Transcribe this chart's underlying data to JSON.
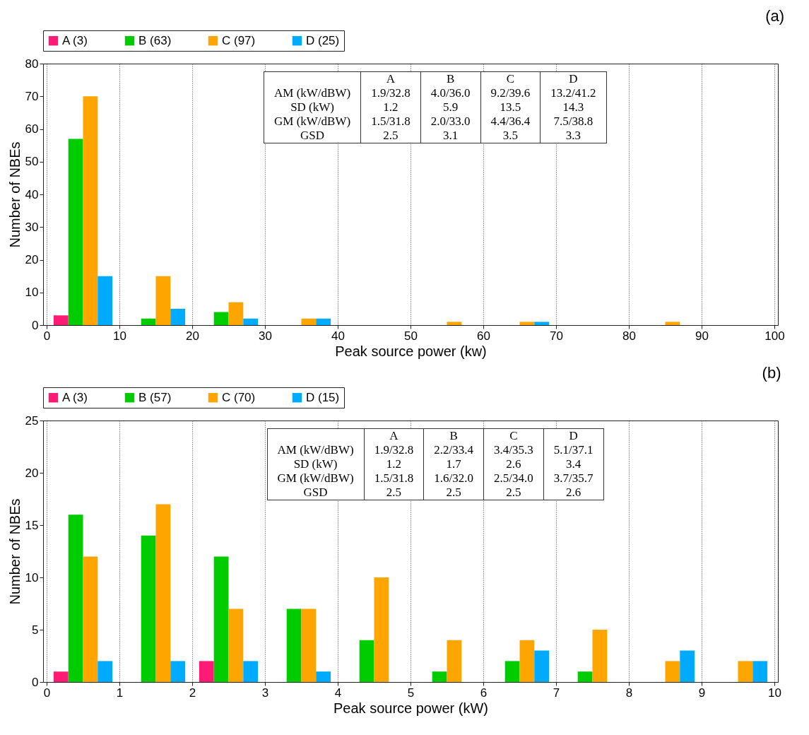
{
  "chart_data": [
    {
      "type": "bar",
      "title": "(a)",
      "xlabel": "Peak source power (kw)",
      "ylabel": "Number of NBEs",
      "x": [
        5,
        15,
        25,
        35,
        45,
        55,
        65,
        75,
        85,
        95
      ],
      "series": [
        {
          "name": "A (3)",
          "color": "#ff1a75",
          "values": [
            3,
            0,
            0,
            0,
            0,
            0,
            0,
            0,
            0,
            0
          ]
        },
        {
          "name": "B (63)",
          "color": "#00cc00",
          "values": [
            57,
            2,
            4,
            0,
            0,
            0,
            0,
            0,
            0,
            0
          ]
        },
        {
          "name": "C (97)",
          "color": "#ffa500",
          "values": [
            70,
            15,
            7,
            2,
            0,
            1,
            1,
            0,
            1,
            0
          ]
        },
        {
          "name": "D (25)",
          "color": "#00aaff",
          "values": [
            15,
            5,
            2,
            2,
            0,
            0,
            1,
            0,
            0,
            0
          ]
        }
      ],
      "xlim": [
        0,
        100
      ],
      "xticks": [
        0,
        10,
        20,
        30,
        40,
        50,
        60,
        70,
        80,
        90,
        100
      ],
      "ylim": [
        0,
        80
      ],
      "yticks": [
        0,
        10,
        20,
        30,
        40,
        50,
        60,
        70,
        80
      ],
      "grid": "x",
      "legend": "top",
      "annotations": [
        "A",
        "B",
        "C",
        "D",
        "AM (kW/dBW)",
        "1.9/32.8",
        "4.0/36.0",
        "9.2/39.6",
        "13.2/41.2",
        "SD (kW)",
        "1.2",
        "5.9",
        "13.5",
        "14.3",
        "GM (kW/dBW)",
        "1.5/31.8",
        "2.0/33.0",
        "4.4/36.4",
        "7.5/38.8",
        "GSD",
        "2.5",
        "3.1",
        "3.5",
        "3.3"
      ]
    },
    {
      "type": "bar",
      "title": "(b)",
      "xlabel": "Peak source power (kW)",
      "ylabel": "Number of NBEs",
      "x": [
        0.5,
        1.5,
        2.5,
        3.5,
        4.5,
        5.5,
        6.5,
        7.5,
        8.5,
        9.5
      ],
      "series": [
        {
          "name": "A (3)",
          "color": "#ff1a75",
          "values": [
            1,
            0,
            2,
            0,
            0,
            0,
            0,
            0,
            0,
            0
          ]
        },
        {
          "name": "B (57)",
          "color": "#00cc00",
          "values": [
            16,
            14,
            12,
            7,
            4,
            1,
            2,
            1,
            0,
            0
          ]
        },
        {
          "name": "C (70)",
          "color": "#ffa500",
          "values": [
            12,
            17,
            7,
            7,
            10,
            4,
            4,
            5,
            2,
            2
          ]
        },
        {
          "name": "D (15)",
          "color": "#00aaff",
          "values": [
            2,
            2,
            2,
            1,
            0,
            0,
            3,
            0,
            3,
            2
          ]
        }
      ],
      "xlim": [
        0,
        10
      ],
      "xticks": [
        0,
        1,
        2,
        3,
        4,
        5,
        6,
        7,
        8,
        9,
        10
      ],
      "ylim": [
        0,
        25
      ],
      "yticks": [
        0,
        5,
        10,
        15,
        20,
        25
      ],
      "grid": "x",
      "legend": "top",
      "annotations": [
        "A",
        "B",
        "C",
        "D",
        "AM (kW/dBW)",
        "1.9/32.8",
        "2.2/33.4",
        "3.4/35.3",
        "5.1/37.1",
        "SD (kW)",
        "1.2",
        "1.7",
        "2.6",
        "3.4",
        "GM (kW/dBW)",
        "1.5/31.8",
        "1.6/32.0",
        "2.5/34.0",
        "3.7/35.7",
        "GSD",
        "2.5",
        "2.5",
        "2.5",
        "2.6"
      ]
    }
  ]
}
